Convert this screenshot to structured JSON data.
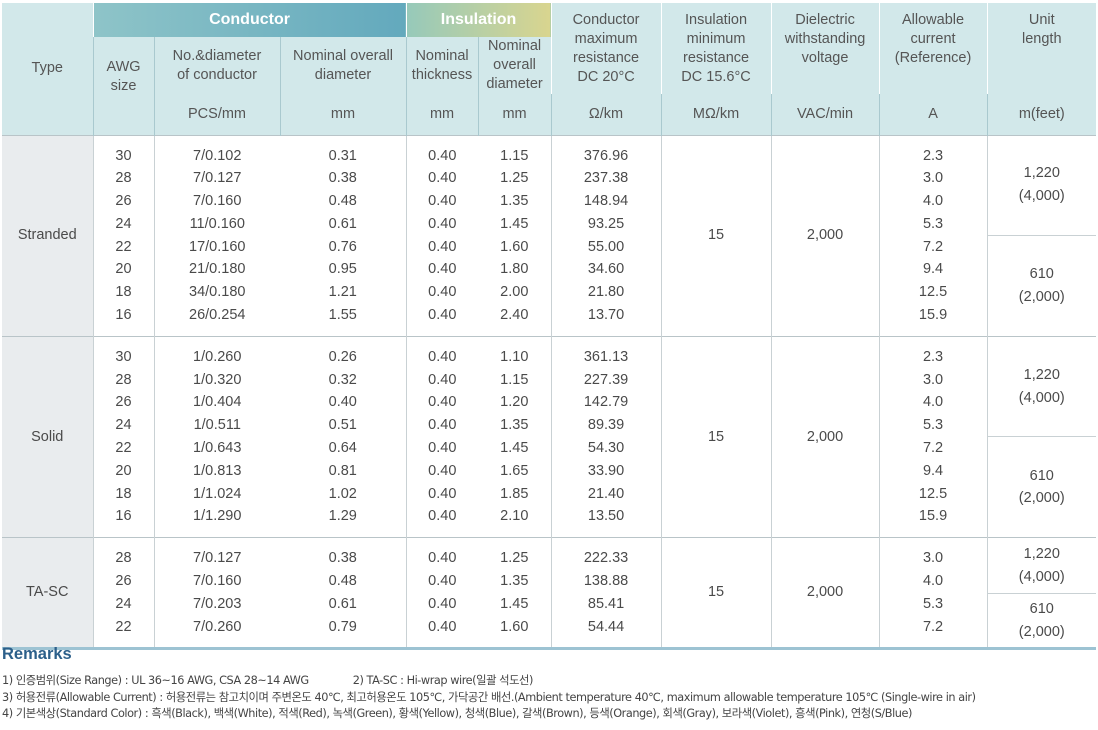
{
  "header": {
    "type": "Type",
    "conductor_group": "Conductor",
    "insulation_group": "Insulation",
    "awg_size": [
      "AWG",
      "size"
    ],
    "no_diameter": [
      "No.&diameter",
      "of conductor"
    ],
    "nominal_overall_diameter": [
      "Nominal overall",
      "diameter"
    ],
    "nominal_thickness": [
      "Nominal",
      "thickness"
    ],
    "nominal_overall_diameter_ins": [
      "Nominal",
      "overall",
      "diameter"
    ],
    "conductor_max_resistance": [
      "Conductor",
      "maximum",
      "resistance",
      "DC 20°C"
    ],
    "insulation_min_resistance": [
      "Insulation",
      "minimum",
      "resistance",
      "DC 15.6°C"
    ],
    "dielectric": [
      "Dielectric",
      "withstanding",
      "voltage"
    ],
    "allowable_current": [
      "Allowable",
      "current",
      "(Reference)"
    ],
    "unit_length": [
      "Unit",
      "length"
    ],
    "units": {
      "pcs_mm": "PCS/mm",
      "mm1": "mm",
      "mm2": "mm",
      "mm3": "mm",
      "ohm_km": "Ω/km",
      "mohm_km": "MΩ/km",
      "vac_min": "VAC/min",
      "amp": "A",
      "m_feet": "m(feet)"
    }
  },
  "sections": [
    {
      "type": "Stranded",
      "awg": [
        "30",
        "28",
        "26",
        "24",
        "22",
        "20",
        "18",
        "16"
      ],
      "no_diameter": [
        "7/0.102",
        "7/0.127",
        "7/0.160",
        "11/0.160",
        "17/0.160",
        "21/0.180",
        "34/0.180",
        "26/0.254"
      ],
      "overall_diameter": [
        "0.31",
        "0.38",
        "0.48",
        "0.61",
        "0.76",
        "0.95",
        "1.21",
        "1.55"
      ],
      "thickness": [
        "0.40",
        "0.40",
        "0.40",
        "0.40",
        "0.40",
        "0.40",
        "0.40",
        "0.40"
      ],
      "ins_diameter": [
        "1.15",
        "1.25",
        "1.35",
        "1.45",
        "1.60",
        "1.80",
        "2.00",
        "2.40"
      ],
      "resistance": [
        "376.96",
        "237.38",
        "148.94",
        "93.25",
        "55.00",
        "34.60",
        "21.80",
        "13.70"
      ],
      "insulation_resistance": "15",
      "dielectric": "2,000",
      "current": [
        "2.3",
        "3.0",
        "4.0",
        "5.3",
        "7.2",
        "9.4",
        "12.5",
        "15.9"
      ],
      "unit_length": [
        [
          "1,220",
          "(4,000)"
        ],
        [
          "610",
          "(2,000)"
        ]
      ]
    },
    {
      "type": "Solid",
      "awg": [
        "30",
        "28",
        "26",
        "24",
        "22",
        "20",
        "18",
        "16"
      ],
      "no_diameter": [
        "1/0.260",
        "1/0.320",
        "1/0.404",
        "1/0.511",
        "1/0.643",
        "1/0.813",
        "1/1.024",
        "1/1.290"
      ],
      "overall_diameter": [
        "0.26",
        "0.32",
        "0.40",
        "0.51",
        "0.64",
        "0.81",
        "1.02",
        "1.29"
      ],
      "thickness": [
        "0.40",
        "0.40",
        "0.40",
        "0.40",
        "0.40",
        "0.40",
        "0.40",
        "0.40"
      ],
      "ins_diameter": [
        "1.10",
        "1.15",
        "1.20",
        "1.35",
        "1.45",
        "1.65",
        "1.85",
        "2.10"
      ],
      "resistance": [
        "361.13",
        "227.39",
        "142.79",
        "89.39",
        "54.30",
        "33.90",
        "21.40",
        "13.50"
      ],
      "insulation_resistance": "15",
      "dielectric": "2,000",
      "current": [
        "2.3",
        "3.0",
        "4.0",
        "5.3",
        "7.2",
        "9.4",
        "12.5",
        "15.9"
      ],
      "unit_length": [
        [
          "1,220",
          "(4,000)"
        ],
        [
          "610",
          "(2,000)"
        ]
      ]
    },
    {
      "type": "TA-SC",
      "awg": [
        "28",
        "26",
        "24",
        "22"
      ],
      "no_diameter": [
        "7/0.127",
        "7/0.160",
        "7/0.203",
        "7/0.260"
      ],
      "overall_diameter": [
        "0.38",
        "0.48",
        "0.61",
        "0.79"
      ],
      "thickness": [
        "0.40",
        "0.40",
        "0.40",
        "0.40"
      ],
      "ins_diameter": [
        "1.25",
        "1.35",
        "1.45",
        "1.60"
      ],
      "resistance": [
        "222.33",
        "138.88",
        "85.41",
        "54.44"
      ],
      "insulation_resistance": "15",
      "dielectric": "2,000",
      "current": [
        "3.0",
        "4.0",
        "5.3",
        "7.2"
      ],
      "unit_length": [
        [
          "1,220",
          "(4,000)"
        ],
        [
          "610",
          "(2,000)"
        ]
      ]
    }
  ],
  "remarks": {
    "title": "Remarks",
    "line1a": "1) 인증범위(Size Range) : UL 36~16 AWG, CSA 28~14 AWG",
    "line1b": "2) TA-SC : Hi-wrap wire(일괄 석도선)",
    "line3": "3)  허용전류(Allowable Current) : 허용전류는 참고치이며 주변온도 40℃, 최고허용온도 105℃, 가닥공간 배선.(Ambient temperature 40℃, maximum allowable temperature 105℃ (Single-wire in air)",
    "line4": "4) 기본색상(Standard Color) : 흑색(Black), 백색(White), 적색(Red), 녹색(Green), 황색(Yellow), 청색(Blue), 갈색(Brown), 등색(Orange), 회색(Gray), 보라색(Violet), 흥색(Pink), 연청(S/Blue)"
  },
  "colors": {
    "header_bg": "#d2e8ea",
    "conductor_banner": "#63a9bd",
    "insulation_banner": "#d9d58f",
    "type_cell_bg": "#e9ecee",
    "remarks_title": "#2c5f8a"
  }
}
